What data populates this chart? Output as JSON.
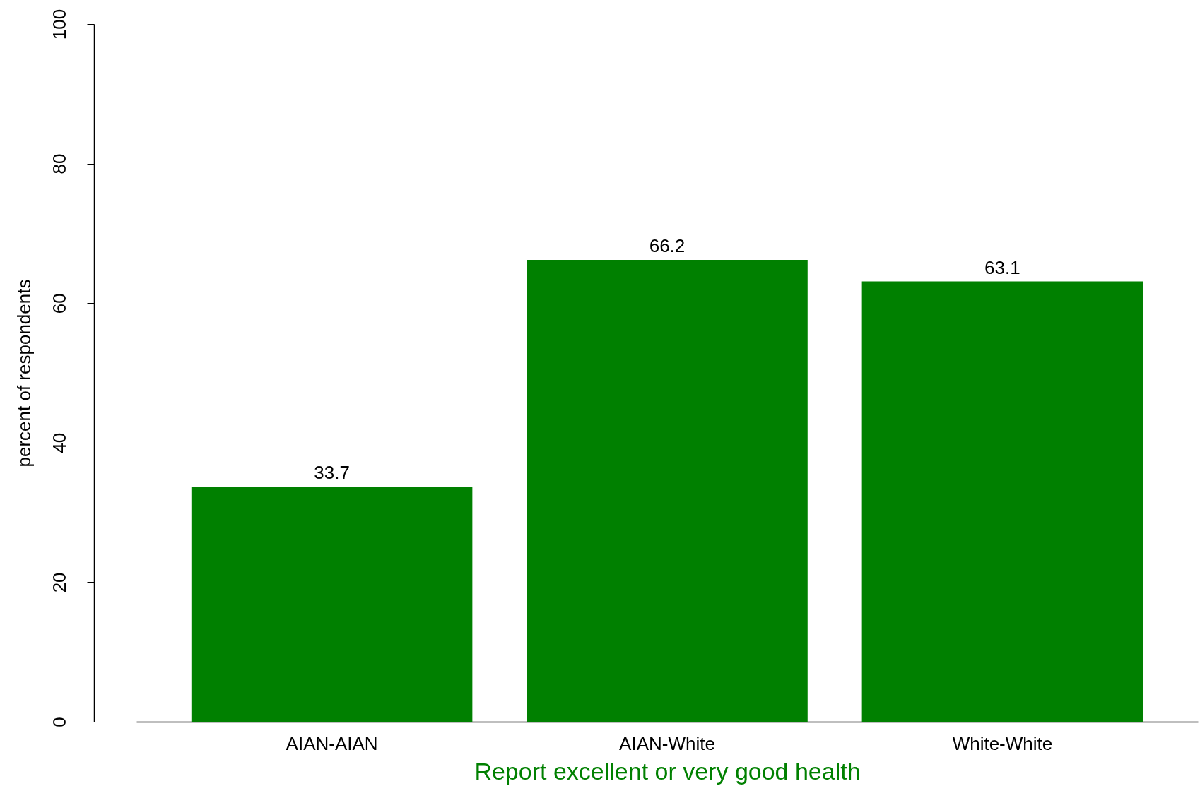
{
  "chart_data": {
    "type": "bar",
    "categories": [
      "AIAN-AIAN",
      "AIAN-White",
      "White-White"
    ],
    "values": [
      33.7,
      66.2,
      63.1
    ],
    "color": "#008000",
    "xlabel": "Report excellent or very good health",
    "ylabel": "percent of respondents",
    "ylim": [
      0,
      100
    ],
    "yticks": [
      0,
      20,
      40,
      60,
      80,
      100
    ],
    "data_labels": true,
    "grid": false
  }
}
